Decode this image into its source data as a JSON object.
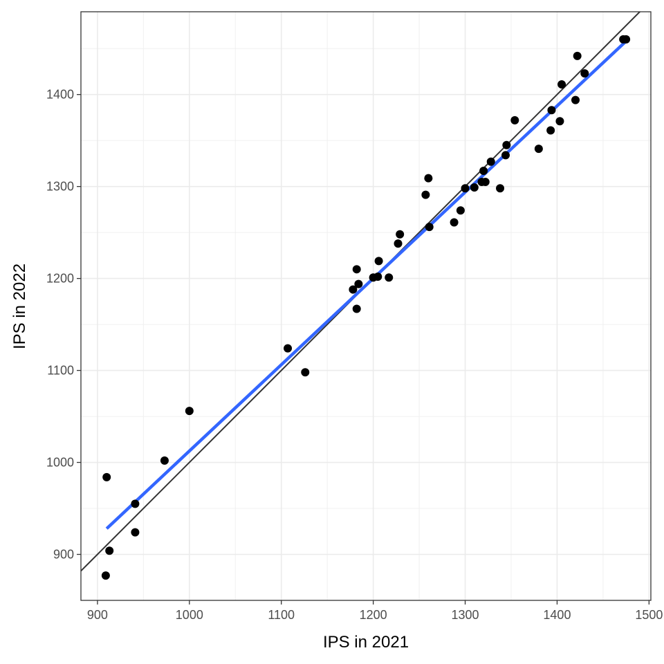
{
  "chart_data": {
    "type": "scatter",
    "title": "",
    "xlabel": "IPS in 2021",
    "ylabel": "IPS in 2022",
    "xlim": [
      882,
      1502
    ],
    "ylim": [
      850,
      1490
    ],
    "xticks": [
      900,
      1000,
      1100,
      1200,
      1300,
      1400,
      1500
    ],
    "yticks": [
      900,
      1000,
      1100,
      1200,
      1300,
      1400
    ],
    "xtick_labels": [
      "900",
      "1000",
      "1100",
      "1200",
      "1300",
      "1400",
      "1500"
    ],
    "ytick_labels": [
      "900",
      "1000",
      "1100",
      "1200",
      "1300",
      "1400"
    ],
    "grid": true,
    "points": [
      {
        "x": 909,
        "y": 877
      },
      {
        "x": 910,
        "y": 984
      },
      {
        "x": 913,
        "y": 904
      },
      {
        "x": 941,
        "y": 955
      },
      {
        "x": 941,
        "y": 924
      },
      {
        "x": 973,
        "y": 1002
      },
      {
        "x": 1000,
        "y": 1056
      },
      {
        "x": 1107,
        "y": 1124
      },
      {
        "x": 1126,
        "y": 1098
      },
      {
        "x": 1178,
        "y": 1188
      },
      {
        "x": 1182,
        "y": 1210
      },
      {
        "x": 1182,
        "y": 1167
      },
      {
        "x": 1184,
        "y": 1194
      },
      {
        "x": 1200,
        "y": 1201
      },
      {
        "x": 1205,
        "y": 1202
      },
      {
        "x": 1206,
        "y": 1219
      },
      {
        "x": 1217,
        "y": 1201
      },
      {
        "x": 1227,
        "y": 1238
      },
      {
        "x": 1229,
        "y": 1248
      },
      {
        "x": 1257,
        "y": 1291
      },
      {
        "x": 1260,
        "y": 1309
      },
      {
        "x": 1261,
        "y": 1256
      },
      {
        "x": 1288,
        "y": 1261
      },
      {
        "x": 1295,
        "y": 1274
      },
      {
        "x": 1300,
        "y": 1298
      },
      {
        "x": 1310,
        "y": 1299
      },
      {
        "x": 1318,
        "y": 1305
      },
      {
        "x": 1320,
        "y": 1317
      },
      {
        "x": 1322,
        "y": 1305
      },
      {
        "x": 1328,
        "y": 1327
      },
      {
        "x": 1338,
        "y": 1298
      },
      {
        "x": 1344,
        "y": 1334
      },
      {
        "x": 1345,
        "y": 1345
      },
      {
        "x": 1354,
        "y": 1372
      },
      {
        "x": 1380,
        "y": 1341
      },
      {
        "x": 1393,
        "y": 1361
      },
      {
        "x": 1394,
        "y": 1383
      },
      {
        "x": 1403,
        "y": 1371
      },
      {
        "x": 1405,
        "y": 1411
      },
      {
        "x": 1420,
        "y": 1394
      },
      {
        "x": 1422,
        "y": 1442
      },
      {
        "x": 1430,
        "y": 1423
      },
      {
        "x": 1472,
        "y": 1460
      },
      {
        "x": 1475,
        "y": 1460
      }
    ],
    "fit_line": {
      "x": [
        910,
        1475
      ],
      "y": [
        928,
        1458
      ],
      "color": "#3366ff"
    },
    "reference_line": {
      "slope": 1,
      "intercept": 0,
      "color": "#333333"
    },
    "point_color": "#000000"
  }
}
